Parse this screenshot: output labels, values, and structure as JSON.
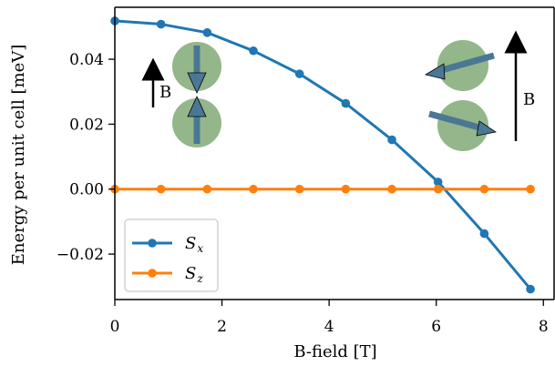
{
  "chart_data": {
    "type": "line",
    "xlabel": "B-field [T]",
    "ylabel": "Energy per unit cell [meV]",
    "xlim": [
      0,
      8.2
    ],
    "ylim": [
      -0.034,
      0.056
    ],
    "xticks": [
      0,
      2,
      4,
      6,
      8
    ],
    "yticks": [
      -0.02,
      0.0,
      0.02,
      0.04
    ],
    "xtick_labels": [
      "0",
      "2",
      "4",
      "6",
      "8"
    ],
    "ytick_labels": [
      "−0.02",
      "0.00",
      "0.02",
      "0.04"
    ],
    "grid": false,
    "legend_position": "lower-left",
    "series": [
      {
        "name": "Sx",
        "legend_main": "S",
        "legend_sub": "x",
        "color": "#1f77b4",
        "x": [
          0,
          0.862,
          1.724,
          2.586,
          3.448,
          4.31,
          5.172,
          6.034,
          6.897,
          7.759
        ],
        "y": [
          0.0518,
          0.0508,
          0.0482,
          0.0426,
          0.0355,
          0.0264,
          0.0152,
          0.0022,
          -0.0137,
          -0.0308
        ]
      },
      {
        "name": "Sz",
        "legend_main": "S",
        "legend_sub": "z",
        "color": "#ff7f0e",
        "x": [
          0,
          0.862,
          1.724,
          2.586,
          3.448,
          4.31,
          5.172,
          6.034,
          6.897,
          7.759
        ],
        "y": [
          0,
          0,
          0,
          0,
          0,
          0,
          0,
          0,
          0,
          0
        ]
      }
    ],
    "insets": {
      "left": {
        "field_label": "B",
        "sphere_color": "#6b9a5e",
        "arrow_color": "#4a7894"
      },
      "right": {
        "field_label": "B",
        "sphere_color": "#6b9a5e",
        "arrow_color": "#4a7894"
      }
    }
  }
}
